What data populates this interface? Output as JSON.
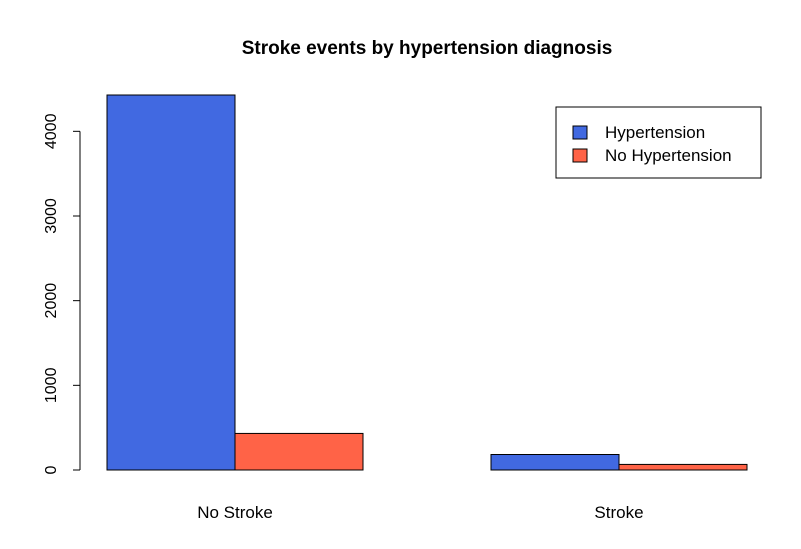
{
  "chart_data": {
    "type": "bar",
    "title": "Stroke events by hypertension diagnosis",
    "xlabel": "",
    "ylabel": "",
    "categories": [
      "No Stroke",
      "Stroke"
    ],
    "series": [
      {
        "name": "Hypertension",
        "color": "#4169E1",
        "values": [
          4429,
          183
        ]
      },
      {
        "name": "No Hypertension",
        "color": "#FF6347",
        "values": [
          432,
          66
        ]
      }
    ],
    "yticks": [
      0,
      1000,
      2000,
      3000,
      4000
    ],
    "ylim": [
      0,
      4429
    ],
    "grid": false,
    "legend_position": "top-right"
  }
}
